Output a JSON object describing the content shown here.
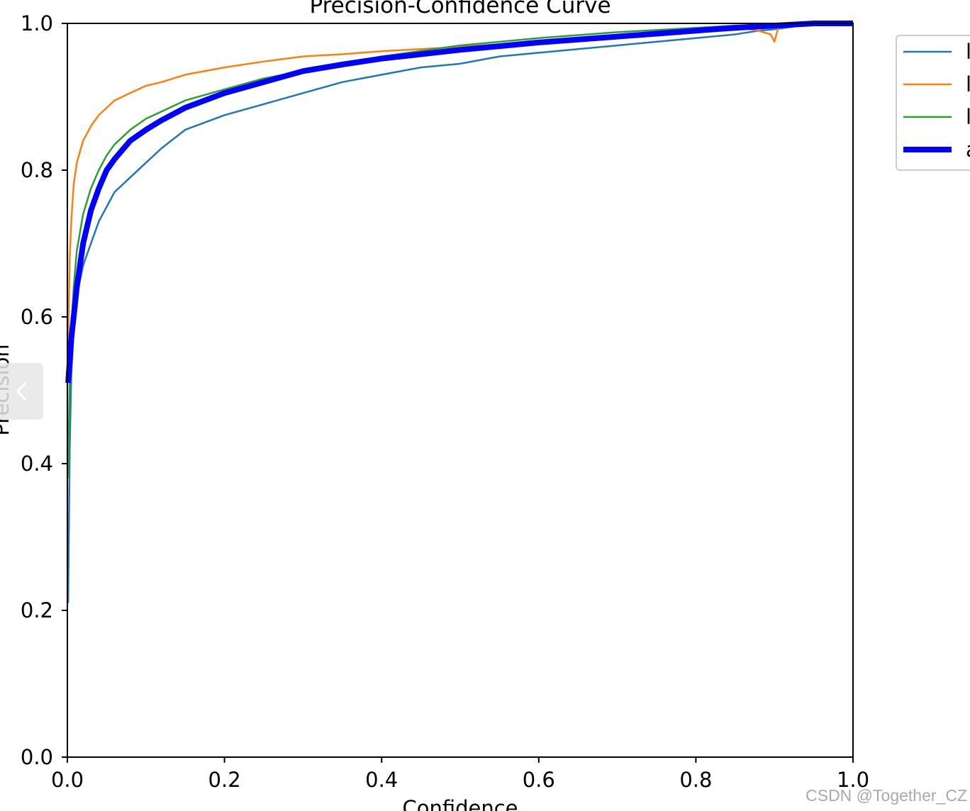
{
  "chart_data": {
    "type": "line",
    "title": "Precision-Confidence Curve",
    "xlabel": "Confidence",
    "ylabel": "Precision",
    "xlim": [
      0,
      1
    ],
    "ylim": [
      0,
      1
    ],
    "xticks": [
      "0.0",
      "0.2",
      "0.4",
      "0.6",
      "0.8",
      "1.0"
    ],
    "yticks": [
      "0.0",
      "0.2",
      "0.4",
      "0.6",
      "0.8",
      "1.0"
    ],
    "grid": false,
    "legend_placement": "outside-top-right",
    "series": [
      {
        "color": "#1f77b4",
        "width": "thin",
        "x": [
          0.001,
          0.003,
          0.005,
          0.008,
          0.012,
          0.02,
          0.03,
          0.04,
          0.05,
          0.06,
          0.08,
          0.1,
          0.12,
          0.15,
          0.2,
          0.25,
          0.3,
          0.35,
          0.4,
          0.45,
          0.5,
          0.55,
          0.6,
          0.65,
          0.7,
          0.75,
          0.8,
          0.85,
          0.88,
          0.9,
          0.92,
          0.95,
          1.0
        ],
        "y": [
          0.21,
          0.42,
          0.52,
          0.58,
          0.63,
          0.67,
          0.7,
          0.73,
          0.75,
          0.77,
          0.79,
          0.81,
          0.83,
          0.855,
          0.875,
          0.89,
          0.905,
          0.92,
          0.93,
          0.94,
          0.945,
          0.955,
          0.96,
          0.965,
          0.97,
          0.975,
          0.98,
          0.985,
          0.99,
          0.992,
          0.995,
          1.0,
          1.0
        ]
      },
      {
        "color": "#ff7f0e",
        "width": "thin",
        "x": [
          0.001,
          0.003,
          0.005,
          0.008,
          0.012,
          0.02,
          0.03,
          0.04,
          0.05,
          0.06,
          0.08,
          0.1,
          0.12,
          0.15,
          0.2,
          0.25,
          0.3,
          0.35,
          0.4,
          0.5,
          0.6,
          0.7,
          0.8,
          0.85,
          0.88,
          0.895,
          0.9,
          0.905,
          0.92,
          0.95,
          1.0
        ],
        "y": [
          0.56,
          0.68,
          0.73,
          0.78,
          0.81,
          0.84,
          0.86,
          0.875,
          0.885,
          0.895,
          0.905,
          0.915,
          0.92,
          0.93,
          0.94,
          0.948,
          0.955,
          0.958,
          0.962,
          0.968,
          0.975,
          0.982,
          0.99,
          0.995,
          0.99,
          0.985,
          0.975,
          0.995,
          0.998,
          1.0,
          1.0
        ]
      },
      {
        "color": "#2ca02c",
        "width": "thin",
        "x": [
          0.001,
          0.003,
          0.005,
          0.008,
          0.012,
          0.02,
          0.03,
          0.04,
          0.05,
          0.06,
          0.08,
          0.1,
          0.12,
          0.15,
          0.2,
          0.25,
          0.3,
          0.35,
          0.4,
          0.5,
          0.6,
          0.7,
          0.8,
          0.85,
          0.9,
          0.95,
          1.0
        ],
        "y": [
          0.38,
          0.52,
          0.58,
          0.64,
          0.69,
          0.74,
          0.775,
          0.8,
          0.82,
          0.835,
          0.855,
          0.87,
          0.88,
          0.895,
          0.91,
          0.925,
          0.935,
          0.945,
          0.955,
          0.97,
          0.98,
          0.988,
          0.994,
          0.997,
          0.999,
          1.0,
          1.0
        ]
      },
      {
        "color": "#0000ff",
        "width": "thick",
        "x": [
          0.001,
          0.003,
          0.005,
          0.008,
          0.012,
          0.02,
          0.03,
          0.04,
          0.05,
          0.06,
          0.08,
          0.1,
          0.12,
          0.15,
          0.2,
          0.25,
          0.3,
          0.35,
          0.4,
          0.45,
          0.5,
          0.55,
          0.6,
          0.65,
          0.7,
          0.75,
          0.8,
          0.85,
          0.9,
          0.95,
          1.0
        ],
        "y": [
          0.51,
          0.54,
          0.57,
          0.6,
          0.64,
          0.7,
          0.745,
          0.775,
          0.8,
          0.815,
          0.84,
          0.855,
          0.868,
          0.885,
          0.905,
          0.92,
          0.935,
          0.944,
          0.952,
          0.958,
          0.964,
          0.969,
          0.974,
          0.978,
          0.982,
          0.986,
          0.99,
          0.994,
          0.997,
          1.0,
          1.0
        ]
      }
    ]
  },
  "legend": {
    "entries": [
      {
        "label": "l",
        "color": "#1f77b4"
      },
      {
        "label": "l",
        "color": "#ff7f0e"
      },
      {
        "label": "l",
        "color": "#2ca02c"
      },
      {
        "label": "a",
        "color": "#0000ff"
      }
    ]
  },
  "nav": {
    "prev_glyph": "‹"
  },
  "watermark": "CSDN @Together_CZ"
}
